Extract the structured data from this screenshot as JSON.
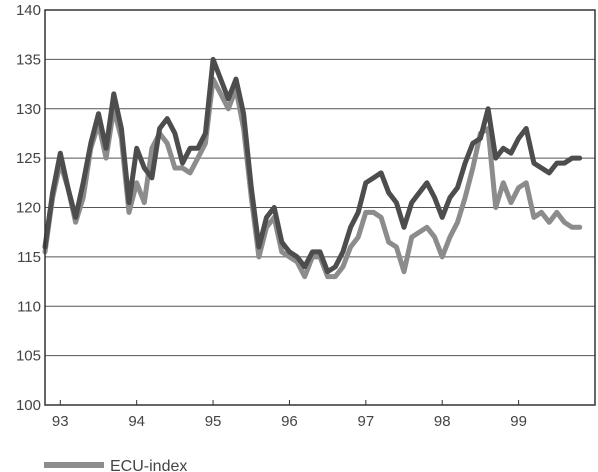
{
  "chart_data": {
    "type": "line",
    "title": "",
    "xlabel": "",
    "ylabel": "",
    "ylim": [
      100,
      140
    ],
    "xlim": [
      92.8,
      100.0
    ],
    "y_ticks": [
      "100",
      "105",
      "110",
      "115",
      "120",
      "125",
      "130",
      "135",
      "140"
    ],
    "x_ticks": [
      {
        "value": 93,
        "label": "93"
      },
      {
        "value": 94,
        "label": "94"
      },
      {
        "value": 95,
        "label": "95"
      },
      {
        "value": 96,
        "label": "96"
      },
      {
        "value": 97,
        "label": "97"
      },
      {
        "value": 98,
        "label": "98"
      },
      {
        "value": 99,
        "label": "99"
      }
    ],
    "grid": "horizontal",
    "legend_position": "bottom-left",
    "series": [
      {
        "name": "ECU-index",
        "color": "#8c8c8c",
        "x": [
          92.8,
          92.9,
          93.0,
          93.1,
          93.2,
          93.3,
          93.4,
          93.5,
          93.6,
          93.7,
          93.8,
          93.9,
          94.0,
          94.1,
          94.2,
          94.3,
          94.4,
          94.5,
          94.6,
          94.7,
          94.8,
          94.9,
          95.0,
          95.1,
          95.2,
          95.3,
          95.4,
          95.5,
          95.6,
          95.7,
          95.8,
          95.9,
          96.0,
          96.1,
          96.2,
          96.3,
          96.4,
          96.5,
          96.6,
          96.7,
          96.8,
          96.9,
          97.0,
          97.1,
          97.2,
          97.3,
          97.4,
          97.5,
          97.6,
          97.7,
          97.8,
          97.9,
          98.0,
          98.1,
          98.2,
          98.3,
          98.4,
          98.5,
          98.6,
          98.7,
          98.8,
          98.9,
          99.0,
          99.1,
          99.2,
          99.3,
          99.4,
          99.5,
          99.6,
          99.7,
          99.8,
          99.9,
          100.0
        ],
        "y": [
          115.5,
          121,
          124.5,
          122,
          118.5,
          121,
          126,
          128.5,
          125,
          130,
          127,
          119.5,
          122.5,
          120.5,
          126,
          127.5,
          126.5,
          124,
          124,
          123.5,
          125,
          126.5,
          133,
          131.5,
          130,
          132,
          128,
          121,
          115,
          118,
          119,
          115.5,
          115,
          114.5,
          113,
          115,
          115,
          113,
          113,
          114,
          116,
          117,
          119.5,
          119.5,
          119,
          116.5,
          116,
          113.5,
          117,
          117.5,
          118,
          117,
          115,
          117,
          118.5,
          121,
          124,
          127.5,
          128,
          120,
          122.5,
          120.5,
          122,
          122.5,
          119,
          119.5,
          118.5,
          119.5,
          118.5,
          118,
          118,
          null,
          null
        ]
      },
      {
        "name": "",
        "color": "#4d4d4d",
        "x": [
          92.8,
          92.9,
          93.0,
          93.1,
          93.2,
          93.3,
          93.4,
          93.5,
          93.6,
          93.7,
          93.8,
          93.9,
          94.0,
          94.1,
          94.2,
          94.3,
          94.4,
          94.5,
          94.6,
          94.7,
          94.8,
          94.9,
          95.0,
          95.1,
          95.2,
          95.3,
          95.4,
          95.5,
          95.6,
          95.7,
          95.8,
          95.9,
          96.0,
          96.1,
          96.2,
          96.3,
          96.4,
          96.5,
          96.6,
          96.7,
          96.8,
          96.9,
          97.0,
          97.1,
          97.2,
          97.3,
          97.4,
          97.5,
          97.6,
          97.7,
          97.8,
          97.9,
          98.0,
          98.1,
          98.2,
          98.3,
          98.4,
          98.5,
          98.6,
          98.7,
          98.8,
          98.9,
          99.0,
          99.1,
          99.2,
          99.3,
          99.4,
          99.5,
          99.6,
          99.7,
          99.8,
          99.9,
          100.0
        ],
        "y": [
          116,
          121.5,
          125.5,
          122,
          119,
          122.5,
          126.5,
          129.5,
          126,
          131.5,
          128,
          120.5,
          126,
          124,
          123,
          128,
          129,
          127.5,
          124.5,
          126,
          126,
          127.5,
          135,
          133,
          131,
          133,
          129.5,
          122,
          116,
          119,
          120,
          116.5,
          115.5,
          115,
          114,
          115.5,
          115.5,
          113.5,
          114,
          115.5,
          118,
          119.5,
          122.5,
          123,
          123.5,
          121.5,
          120.5,
          118,
          120.5,
          121.5,
          122.5,
          121,
          119,
          121,
          122,
          124.5,
          126.5,
          127,
          130,
          125,
          126,
          125.5,
          127,
          128,
          124.5,
          124,
          123.5,
          124.5,
          124.5,
          125,
          125,
          null,
          null
        ]
      }
    ]
  },
  "legend": {
    "label": "ECU-index",
    "color": "#8c8c8c"
  }
}
